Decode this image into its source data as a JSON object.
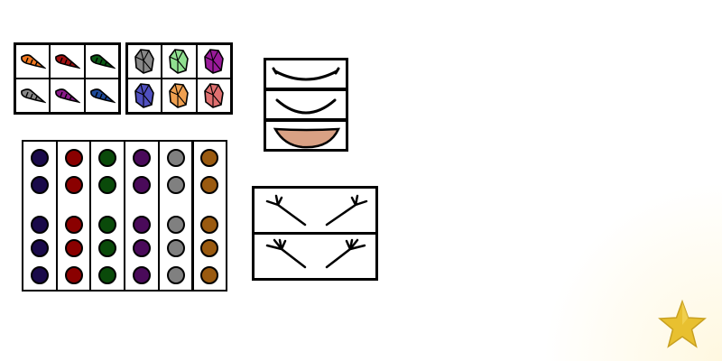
{
  "horn_palette": {
    "colors": [
      "#f07820",
      "#a01010",
      "#0a5a14",
      "#888888",
      "#8a1a8a",
      "#1e4a9a"
    ],
    "icon": "horn-icon"
  },
  "crystal_palette": {
    "colors": [
      "#888888",
      "#90e090",
      "#9a1a9a",
      "#5050c0",
      "#f0a050",
      "#e07070"
    ],
    "icon": "crystal-icon"
  },
  "mouth_options": [
    {
      "name": "mouth-smile-thin",
      "icon": "smile-thin-icon"
    },
    {
      "name": "mouth-smile-wide",
      "icon": "smile-wide-icon"
    },
    {
      "name": "mouth-grin-open",
      "icon": "grin-open-icon",
      "fill": "#d9a184"
    }
  ],
  "dot_columns": {
    "colors": [
      "#1a0a4a",
      "#8a0000",
      "#0a4a0a",
      "#4a0a5a",
      "#808080",
      "#9a5a10"
    ],
    "rows_per_column": 5
  },
  "brow_options": [
    {
      "name": "brow-style-1",
      "icon": "antler-brows-icon"
    },
    {
      "name": "brow-style-2",
      "icon": "branch-brows-icon"
    }
  ],
  "reward": {
    "icon": "star-icon",
    "color": "#e8c030"
  }
}
